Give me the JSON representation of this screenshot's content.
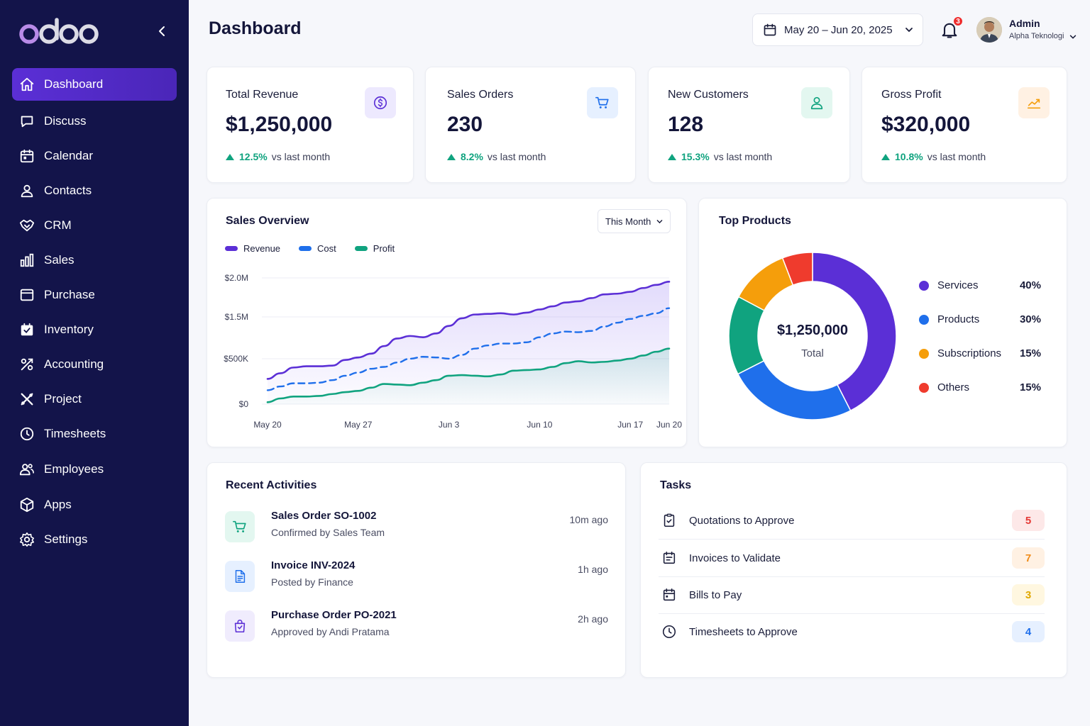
{
  "app": {
    "logo_text": "odoo"
  },
  "sidebar": {
    "items": [
      {
        "label": "Dashboard",
        "icon": "home-icon"
      },
      {
        "label": "Discuss",
        "icon": "chat-icon"
      },
      {
        "label": "Calendar",
        "icon": "calendar-icon"
      },
      {
        "label": "Contacts",
        "icon": "contacts-icon"
      },
      {
        "label": "CRM",
        "icon": "handshake-icon"
      },
      {
        "label": "Sales",
        "icon": "bar-chart-icon"
      },
      {
        "label": "Purchase",
        "icon": "purchase-icon"
      },
      {
        "label": "Inventory",
        "icon": "inventory-icon"
      },
      {
        "label": "Accounting",
        "icon": "accounting-icon"
      },
      {
        "label": "Project",
        "icon": "project-icon"
      },
      {
        "label": "Timesheets",
        "icon": "clock-icon"
      },
      {
        "label": "Employees",
        "icon": "employees-icon"
      },
      {
        "label": "Apps",
        "icon": "apps-icon"
      },
      {
        "label": "Settings",
        "icon": "gear-icon"
      }
    ],
    "active": "Dashboard"
  },
  "header": {
    "title": "Dashboard",
    "date_range": "May 20 – Jun 20, 2025",
    "notifications_count": "3",
    "user_name": "Admin",
    "user_company": "Alpha Teknologi"
  },
  "kpis": [
    {
      "label": "Total Revenue",
      "value": "$1,250,000",
      "change": "12.5%",
      "suffix": "vs last month",
      "icon": "dollar-icon",
      "icon_bg": "#ede9fe",
      "icon_color": "#5b2fd6"
    },
    {
      "label": "Sales Orders",
      "value": "230",
      "change": "8.2%",
      "suffix": "vs last month",
      "icon": "cart-icon",
      "icon_bg": "#e6f0ff",
      "icon_color": "#1f6feb"
    },
    {
      "label": "New Customers",
      "value": "128",
      "change": "15.3%",
      "suffix": "vs last month",
      "icon": "user-icon",
      "icon_bg": "#e3f7f0",
      "icon_color": "#10a37f"
    },
    {
      "label": "Gross Profit",
      "value": "$320,000",
      "change": "10.8%",
      "suffix": "vs last month",
      "icon": "trend-up-icon",
      "icon_bg": "#fff1e3",
      "icon_color": "#f59e0b"
    }
  ],
  "sales_overview": {
    "title": "Sales Overview",
    "period": "This Month"
  },
  "chart_data": [
    {
      "type": "line",
      "x": [
        "May 20",
        "May 21",
        "May 22",
        "May 23",
        "May 24",
        "May 25",
        "May 26",
        "May 27",
        "May 28",
        "May 29",
        "May 30",
        "May 31",
        "Jun 1",
        "Jun 2",
        "Jun 3",
        "Jun 4",
        "Jun 5",
        "Jun 6",
        "Jun 7",
        "Jun 8",
        "Jun 9",
        "Jun 10",
        "Jun 11",
        "Jun 12",
        "Jun 13",
        "Jun 14",
        "Jun 15",
        "Jun 16",
        "Jun 17",
        "Jun 18",
        "Jun 19",
        "Jun 20"
      ],
      "xticks": [
        "May 20",
        "May 27",
        "Jun 3",
        "Jun 10",
        "Jun 17",
        "Jun 20"
      ],
      "yticks": [
        "$0",
        "$500K",
        "$1.5M",
        "$2.0M"
      ],
      "series": [
        {
          "name": "Revenue",
          "color": "#5b2fd6",
          "style": "solid",
          "values": [
            0.4,
            0.49,
            0.58,
            0.6,
            0.6,
            0.61,
            0.7,
            0.74,
            0.8,
            0.92,
            1.04,
            1.08,
            1.06,
            1.12,
            1.24,
            1.36,
            1.42,
            1.43,
            1.44,
            1.42,
            1.45,
            1.5,
            1.55,
            1.61,
            1.63,
            1.68,
            1.74,
            1.75,
            1.78,
            1.84,
            1.89,
            1.94
          ]
        },
        {
          "name": "Cost",
          "color": "#1f6feb",
          "style": "dashed",
          "values": [
            0.22,
            0.28,
            0.33,
            0.33,
            0.34,
            0.38,
            0.45,
            0.5,
            0.56,
            0.59,
            0.66,
            0.72,
            0.75,
            0.74,
            0.72,
            0.78,
            0.88,
            0.93,
            0.96,
            0.96,
            0.98,
            1.06,
            1.12,
            1.15,
            1.14,
            1.16,
            1.23,
            1.29,
            1.35,
            1.4,
            1.44,
            1.52
          ]
        },
        {
          "name": "Profit",
          "color": "#10a37f",
          "style": "solid",
          "values": [
            0.03,
            0.09,
            0.12,
            0.12,
            0.13,
            0.16,
            0.19,
            0.21,
            0.26,
            0.32,
            0.31,
            0.3,
            0.34,
            0.38,
            0.45,
            0.46,
            0.45,
            0.44,
            0.47,
            0.53,
            0.54,
            0.55,
            0.59,
            0.65,
            0.68,
            0.66,
            0.67,
            0.69,
            0.72,
            0.77,
            0.83,
            0.88
          ]
        }
      ],
      "ylim": [
        0,
        2.0
      ],
      "grid": true,
      "legend": "top-left"
    },
    {
      "type": "pie",
      "title": "Top Products",
      "center_value": "$1,250,000",
      "center_label": "Total",
      "categories": [
        "Services",
        "Products",
        "Subscriptions",
        "Others"
      ],
      "values": [
        40,
        30,
        15,
        15
      ],
      "labels": [
        "40%",
        "30%",
        "15%",
        "15%"
      ],
      "colors": [
        "#5b2fd6",
        "#1f6feb",
        "#f59e0b",
        "#ef3b2d"
      ],
      "note_colors": "segment order clockwise from top: Services, Products, Teal (#10a37f) segment, Subscriptions, Others"
    }
  ],
  "recent_activities": {
    "title": "Recent Activities",
    "items": [
      {
        "title": "Sales Order SO-1002",
        "sub": "Confirmed by Sales Team",
        "time": "10m ago",
        "icon": "cart-icon"
      },
      {
        "title": "Invoice INV-2024",
        "sub": "Posted by Finance",
        "time": "1h ago",
        "icon": "document-icon"
      },
      {
        "title": "Purchase Order PO-2021",
        "sub": "Approved by Andi Pratama",
        "time": "2h ago",
        "icon": "purchase-bag-icon"
      }
    ]
  },
  "tasks": {
    "title": "Tasks",
    "items": [
      {
        "label": "Quotations to Approve",
        "count": "5",
        "icon": "clipboard-check-icon",
        "badge_bg": "#fde8e8",
        "badge_color": "#e53935"
      },
      {
        "label": "Invoices to Validate",
        "count": "7",
        "icon": "invoice-icon",
        "badge_bg": "#fff1e3",
        "badge_color": "#f08c1a"
      },
      {
        "label": "Bills to Pay",
        "count": "3",
        "icon": "bill-icon",
        "badge_bg": "#fff7e0",
        "badge_color": "#e0a800"
      },
      {
        "label": "Timesheets to Approve",
        "count": "4",
        "icon": "clock-icon",
        "badge_bg": "#e6f0ff",
        "badge_color": "#1f6feb"
      }
    ]
  }
}
